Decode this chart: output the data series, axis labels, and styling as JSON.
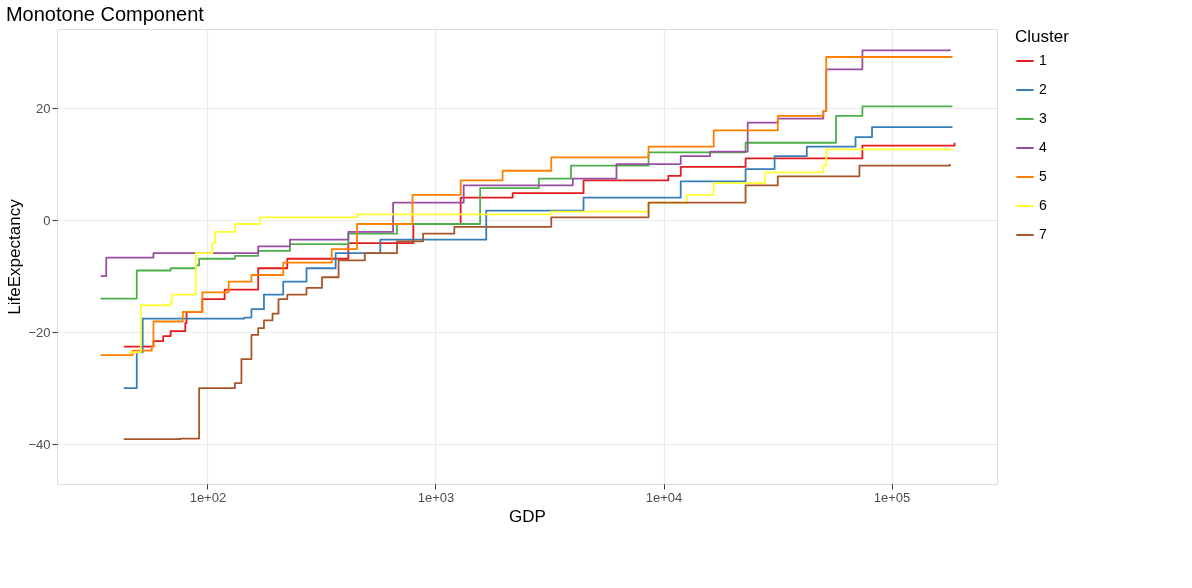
{
  "chart_data": {
    "type": "step",
    "title": "Monotone Component",
    "xlabel": "GDP",
    "ylabel": "LifeExpectancy",
    "legend_title": "Cluster",
    "legend": "right",
    "grid": true,
    "log": "x",
    "line_style": "solid",
    "marker": "none",
    "xlim": [
      21.9,
      290000
    ],
    "xticks": [
      {
        "value": 100,
        "label": "1e+02"
      },
      {
        "value": 1000,
        "label": "1e+03"
      },
      {
        "value": 10000,
        "label": "1e+04"
      },
      {
        "value": 100000,
        "label": "1e+05"
      }
    ],
    "ylim": [
      -47.1,
      34.1
    ],
    "yticks": [
      -40,
      -20,
      0,
      20
    ],
    "series": [
      {
        "name": "1",
        "color": "#e41a1c",
        "x": [
          43,
          58,
          64,
          69,
          80,
          81,
          95,
          119,
          167,
          224,
          415,
          800,
          1290,
          2180,
          4460,
          10500,
          11900,
          22900,
          74500,
          189000
        ],
        "values": [
          -22.6,
          -21.6,
          -20.7,
          -19.8,
          -18.4,
          -16.4,
          -14.1,
          -12.4,
          -8.6,
          -6.9,
          -4.1,
          -0.7,
          4.0,
          4.8,
          7.1,
          7.9,
          9.5,
          11,
          13.3,
          13.8
        ]
      },
      {
        "name": "2",
        "color": "#377eb8",
        "x": [
          43,
          49,
          52,
          145,
          156,
          177,
          215,
          272,
          365,
          573,
          1670,
          4460,
          11900,
          22900,
          30700,
          42500,
          69500,
          82100,
          185000
        ],
        "values": [
          -30,
          -23.6,
          -17.6,
          -17.4,
          -15.9,
          -13.3,
          -11,
          -8.6,
          -5.9,
          -3.5,
          1.7,
          4,
          6.9,
          9.1,
          11.4,
          13.1,
          14.8,
          16.6,
          16.6
        ]
      },
      {
        "name": "3",
        "color": "#4daf4a",
        "x": [
          34,
          49,
          69,
          89,
          92,
          132,
          167,
          230,
          415,
          678,
          1570,
          2840,
          3930,
          8600,
          22900,
          57100,
          74500,
          185000
        ],
        "values": [
          -14,
          -9,
          -8.6,
          -8.1,
          -6.9,
          -6.4,
          -5.5,
          -4.3,
          -2.4,
          -0.7,
          5.7,
          7.4,
          9.7,
          12.1,
          13.8,
          18.6,
          20.3,
          20.3
        ]
      },
      {
        "name": "4",
        "color": "#984ea3",
        "x": [
          34,
          36,
          58,
          167,
          230,
          415,
          652,
          1330,
          4000,
          6220,
          11900,
          16000,
          23400,
          31700,
          50200,
          51700,
          74500,
          180000
        ],
        "values": [
          -10,
          -6.7,
          -5.9,
          -4.7,
          -3.5,
          -2.1,
          3.1,
          6.2,
          7.4,
          10,
          11.4,
          12.2,
          17.4,
          18.1,
          19.5,
          26.9,
          30.3,
          30.5
        ]
      },
      {
        "name": "5",
        "color": "#ff7f00",
        "x": [
          34,
          47,
          57,
          58,
          78,
          95,
          124,
          156,
          215,
          351,
          453,
          793,
          1290,
          1970,
          3220,
          8600,
          16600,
          31700,
          50200,
          51700,
          185000
        ],
        "values": [
          -24.1,
          -23.3,
          -22.5,
          -18.1,
          -16.4,
          -12.9,
          -11,
          -9.8,
          -7.6,
          -5.2,
          -0.7,
          4.5,
          7.1,
          8.8,
          11.2,
          13.1,
          16,
          18.6,
          19.5,
          29.1,
          29.1
        ]
      },
      {
        "name": "6",
        "color": "#ffff33",
        "x": [
          45,
          51,
          69,
          70,
          89,
          105,
          108,
          132,
          170,
          453,
          3220,
          8600,
          12700,
          16600,
          27900,
          50200,
          51700,
          185000
        ],
        "values": [
          -23.6,
          -15.2,
          -14.7,
          -13.3,
          -5.9,
          -4.1,
          -2.1,
          -0.7,
          0.5,
          1.0,
          1.5,
          3.1,
          4.5,
          6.6,
          8.5,
          9.7,
          12.6,
          12.6
        ]
      },
      {
        "name": "7",
        "color": "#a65628",
        "x": [
          43,
          76,
          92,
          132,
          141,
          156,
          167,
          177,
          193,
          205,
          224,
          272,
          318,
          376,
          490,
          678,
          883,
          1210,
          3220,
          8600,
          22900,
          31700,
          72300,
          180000
        ],
        "values": [
          -39.1,
          -39,
          -30,
          -29.1,
          -24.8,
          -20.5,
          -19.3,
          -17.9,
          -16.7,
          -14.1,
          -13.3,
          -12.1,
          -10.2,
          -7.2,
          -5.9,
          -3.8,
          -2.4,
          -1.2,
          0.5,
          3.1,
          6.2,
          7.8,
          9.7,
          10
        ]
      }
    ]
  }
}
